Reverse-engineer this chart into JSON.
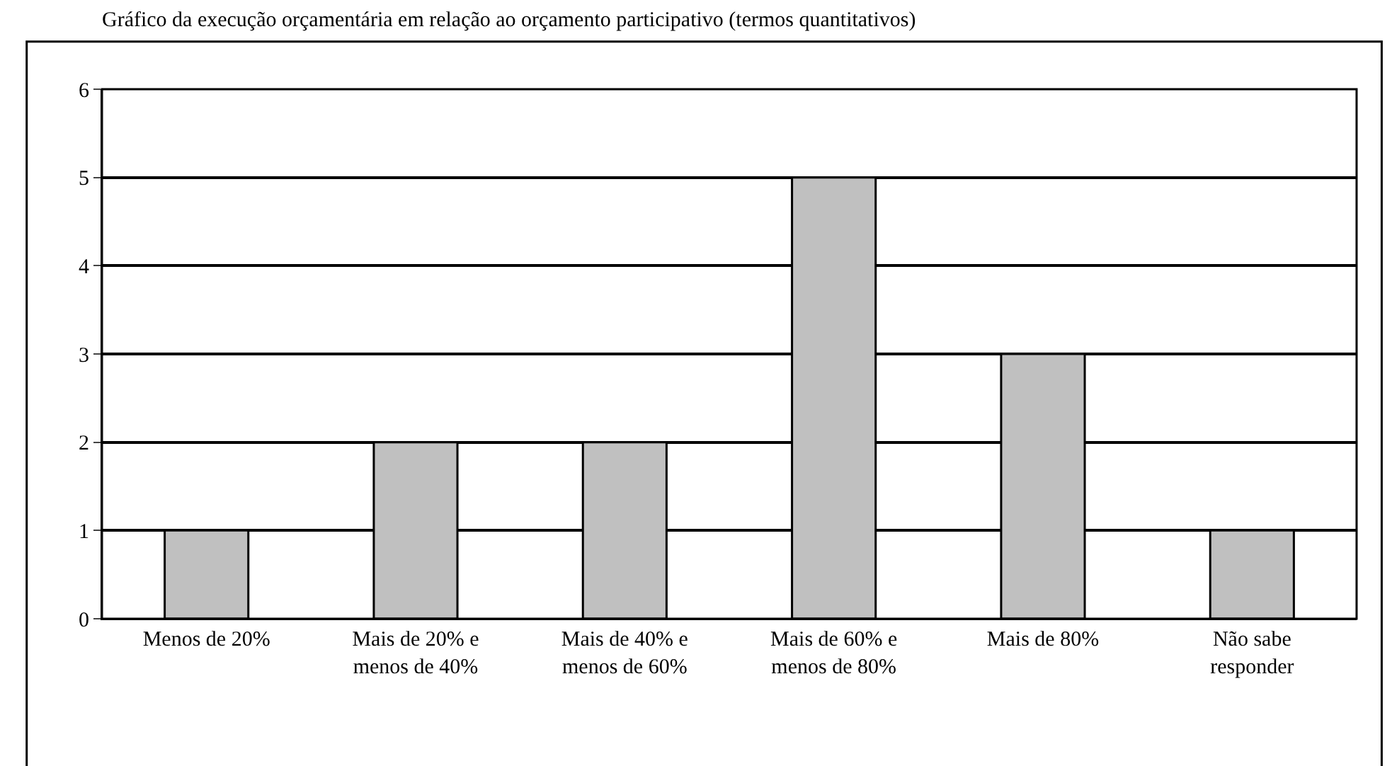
{
  "chart_data": {
    "type": "bar",
    "title": "Gráfico da execução orçamentária em relação ao orçamento participativo (termos quantitativos)",
    "categories": [
      "Menos de 20%",
      "Mais de 20% e menos de 40%",
      "Mais de 40% e menos de 60%",
      "Mais de 60% e menos de 80%",
      "Mais de 80%",
      "Não sabe responder"
    ],
    "values": [
      1,
      2,
      2,
      5,
      3,
      1
    ],
    "color": "#c0c0c0",
    "ylim": [
      0,
      6
    ],
    "yticks": [
      0,
      1,
      2,
      3,
      4,
      5,
      6
    ],
    "grid": "y"
  }
}
